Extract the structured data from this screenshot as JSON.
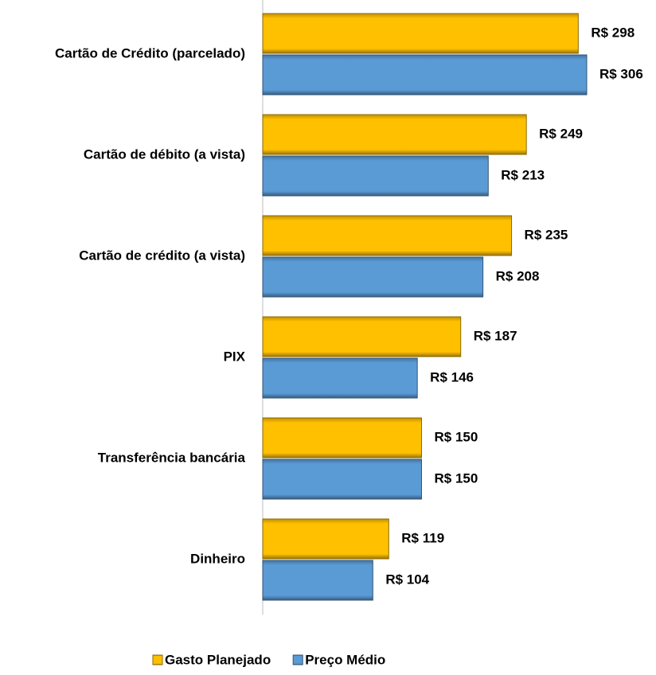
{
  "chart_data": {
    "type": "bar",
    "orientation": "horizontal",
    "categories": [
      "Cartão de Crédito (parcelado)",
      "Cartão de débito (a vista)",
      "Cartão de crédito (a vista)",
      "PIX",
      "Transferência bancária",
      "Dinheiro"
    ],
    "series": [
      {
        "name": "Gasto Planejado",
        "color": "#ffc000",
        "values": [
          298,
          249,
          235,
          187,
          150,
          119
        ],
        "value_labels": [
          "R$ 298",
          "R$ 249",
          "R$ 235",
          "R$ 187",
          "R$ 150",
          "R$ 119"
        ]
      },
      {
        "name": "Preço Médio",
        "color": "#5b9bd5",
        "values": [
          306,
          213,
          208,
          146,
          150,
          104
        ],
        "value_labels": [
          "R$ 306",
          "R$ 213",
          "R$ 208",
          "R$ 146",
          "R$ 150",
          "R$ 104"
        ]
      }
    ],
    "xlim": [
      0,
      350
    ],
    "legend": "bottom"
  }
}
